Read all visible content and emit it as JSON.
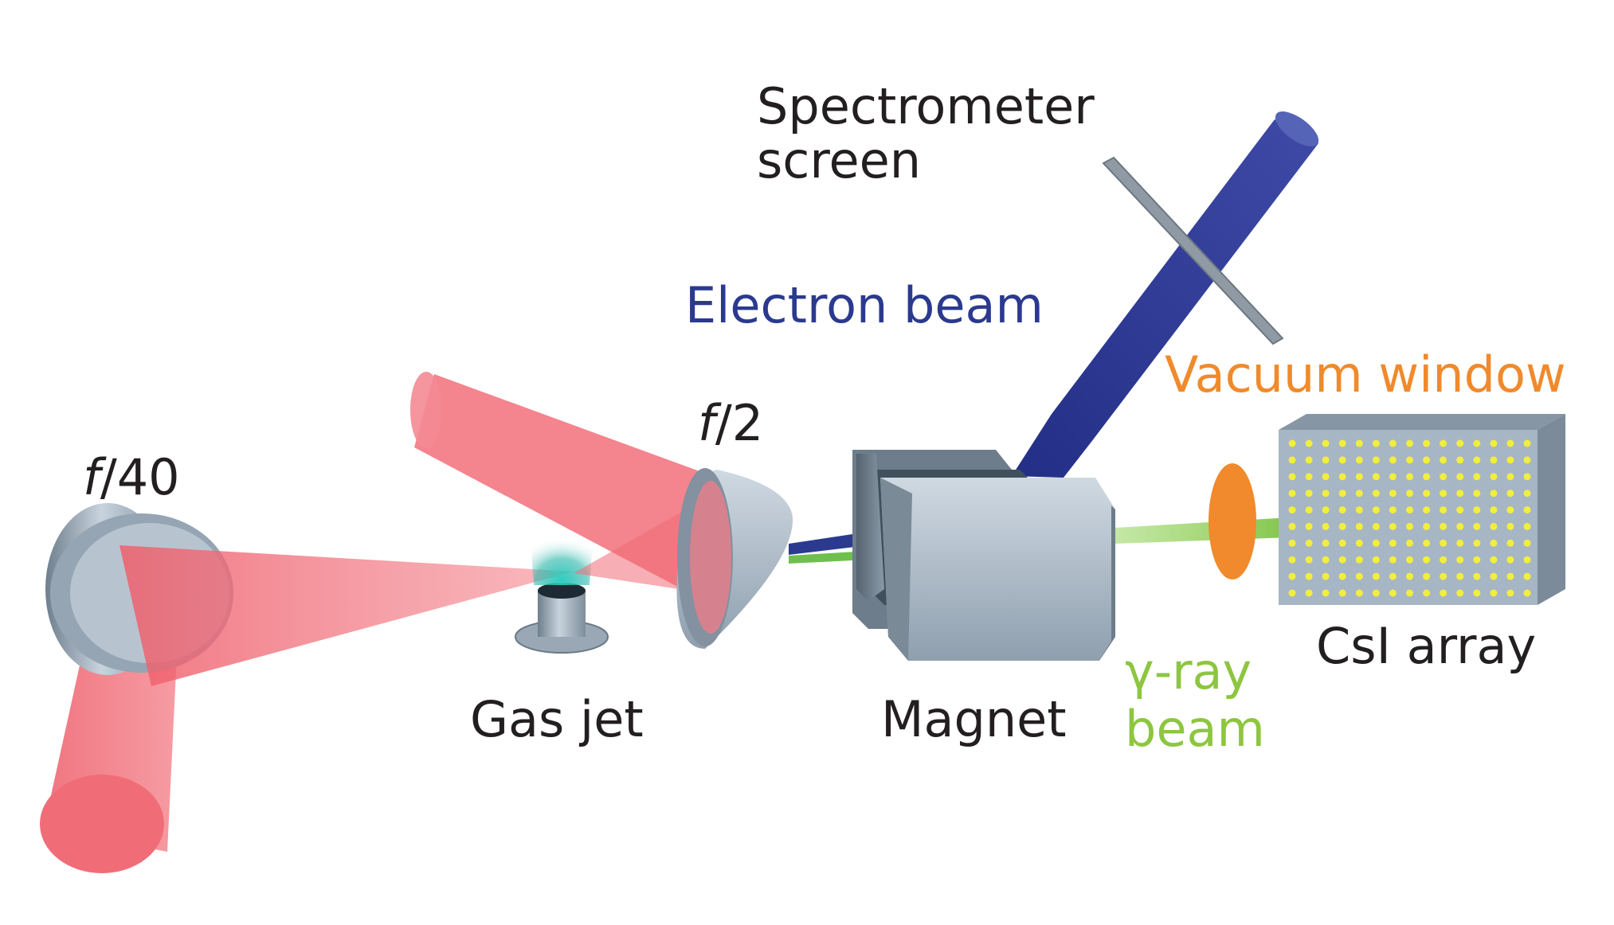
{
  "labels": {
    "spectrometer_line1": "Spectrometer",
    "spectrometer_line2": "screen",
    "electron_beam": "Electron beam",
    "vacuum_window": "Vacuum window",
    "f2_italic": "f",
    "f2_rest": "/2",
    "f40_italic": "f",
    "f40_rest": "/40",
    "csi_array": "CsI array",
    "gamma_line1": "γ-ray",
    "gamma_line2": "beam",
    "gas_jet": "Gas jet",
    "magnet": "Magnet"
  },
  "colors": {
    "text": "#231f20",
    "electron_beam": "#2b3a8f",
    "vacuum_window": "#f08a2c",
    "gamma_ray": "#8dc63f",
    "laser": "#f0707a",
    "metal": "#a9b7c4",
    "crystal_dots": "#f2ee3c"
  },
  "csi_array": {
    "rows": 10,
    "columns": 15
  }
}
